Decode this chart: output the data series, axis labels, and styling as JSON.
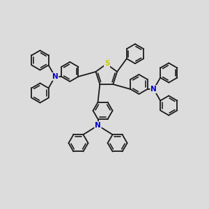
{
  "bg_color": "#dcdcdc",
  "bond_color": "#1a1a1a",
  "S_color": "#cccc00",
  "N_color": "#0000cc",
  "lw": 1.3,
  "r": 0.1,
  "figsize": [
    3.0,
    3.0
  ],
  "dpi": 100,
  "xlim": [
    -1.05,
    1.05
  ],
  "ylim": [
    -1.05,
    1.05
  ]
}
